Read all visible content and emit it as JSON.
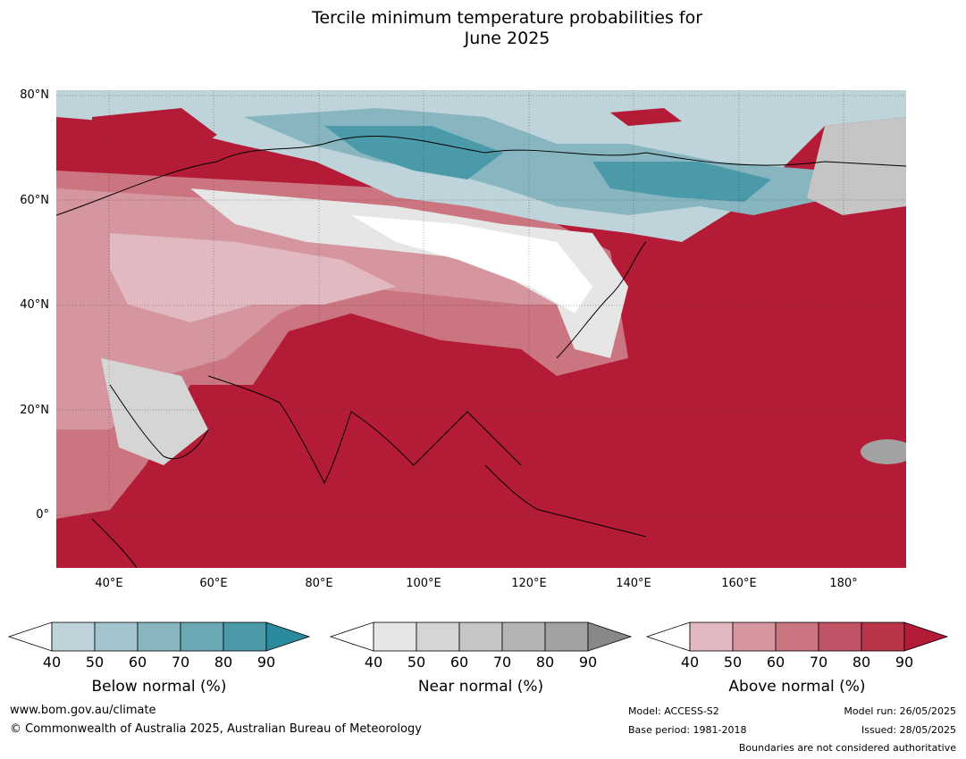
{
  "title_line1": "Tercile minimum temperature probabilities for",
  "title_line2": "June 2025",
  "latitude_labels": [
    "80°N",
    "60°N",
    "40°N",
    "20°N",
    "0°"
  ],
  "longitude_labels": [
    "40°E",
    "60°E",
    "80°E",
    "100°E",
    "120°E",
    "140°E",
    "160°E",
    "180°"
  ],
  "legends": {
    "below": {
      "label": "Below normal (%)",
      "ticks": [
        "40",
        "50",
        "60",
        "70",
        "80",
        "90"
      ],
      "colors": [
        "#bfd3da",
        "#a3c4cc",
        "#87b6c0",
        "#6aa8b4",
        "#4b9aaa",
        "#2a8b9f"
      ]
    },
    "near": {
      "label": "Near normal (%)",
      "ticks": [
        "40",
        "50",
        "60",
        "70",
        "80",
        "90"
      ],
      "colors": [
        "#e6e6e6",
        "#d5d5d5",
        "#c5c5c5",
        "#b4b4b4",
        "#a2a2a2",
        "#888888"
      ]
    },
    "above": {
      "label": "Above normal (%)",
      "ticks": [
        "40",
        "50",
        "60",
        "70",
        "80",
        "90"
      ],
      "colors": [
        "#e2b9c0",
        "#d6969f",
        "#cb7581",
        "#c05365",
        "#b8354a",
        "#b31b36"
      ]
    }
  },
  "footer": {
    "website": "www.bom.gov.au/climate",
    "copyright": "© Commonwealth of Australia 2025, Australian Bureau of Meteorology",
    "model": "Model: ACCESS-S2",
    "base_period": "Base period: 1981-2018",
    "model_run": "Model run: 26/05/2025",
    "issued": "Issued: 28/05/2025",
    "disclaimer": "Boundaries are not considered authoritative"
  }
}
